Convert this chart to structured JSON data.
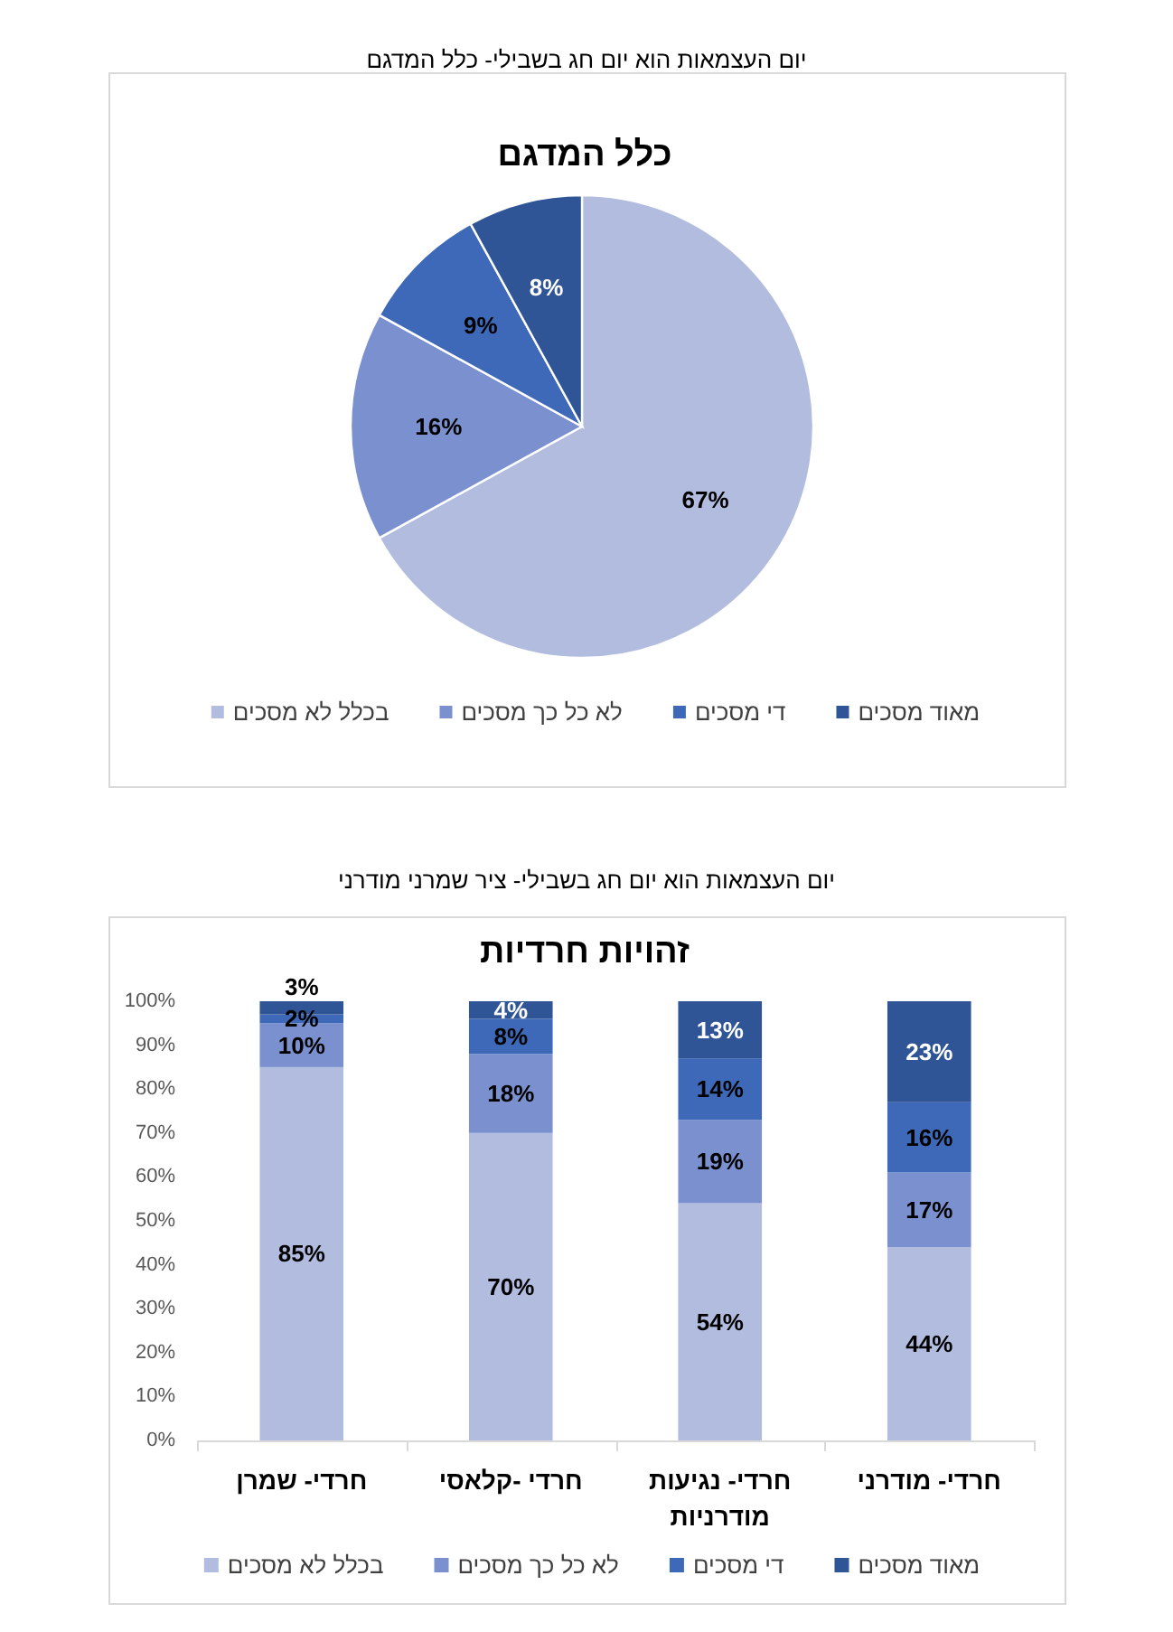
{
  "chart_data": [
    {
      "type": "pie",
      "title": "כלל המדגם",
      "annotations": [
        "יום העצמאות הוא יום חג בשבילי- כלל המדגם"
      ],
      "categories": [
        "בכלל לא מסכים",
        "לא כל כך מסכים",
        "די מסכים",
        "מאוד מסכים"
      ],
      "values": [
        67,
        16,
        9,
        8
      ],
      "colors": [
        "#b1bcdf",
        "#7b91cf",
        "#3e69b8",
        "#2f5597"
      ],
      "value_labels": [
        "67%",
        "16%",
        "9%",
        "8%"
      ],
      "legend": "bottom"
    },
    {
      "type": "bar",
      "stacked": true,
      "title": "זהויות חרדיות",
      "annotations": [
        "יום העצמאות הוא יום חג בשבילי- ציר שמרני מודרני"
      ],
      "categories": [
        "חרדי- שמרן",
        "חרדי -קלאסי",
        "חרדי- נגיעות מודרניות",
        "חרדי- מודרני"
      ],
      "series": [
        {
          "name": "בכלל לא מסכים",
          "color": "#b1bcdf",
          "values": [
            85,
            70,
            54,
            44
          ],
          "value_labels": [
            "85%",
            "70%",
            "54%",
            "44%"
          ]
        },
        {
          "name": "לא כל כך מסכים",
          "color": "#7b91cf",
          "values": [
            10,
            18,
            19,
            17
          ],
          "value_labels": [
            "10%",
            "18%",
            "19%",
            "17%"
          ]
        },
        {
          "name": "די מסכים",
          "color": "#3e69b8",
          "values": [
            2,
            8,
            14,
            16
          ],
          "value_labels": [
            "2%",
            "8%",
            "14%",
            "16%"
          ]
        },
        {
          "name": "מאוד מסכים",
          "color": "#2f5597",
          "values": [
            3,
            4,
            13,
            23
          ],
          "value_labels": [
            "3%",
            "4%",
            "13%",
            "23%"
          ]
        }
      ],
      "ylim": [
        0,
        100
      ],
      "yticks": [
        {
          "value": 0,
          "label": "0%"
        },
        {
          "value": 10,
          "label": "10%"
        },
        {
          "value": 20,
          "label": "20%"
        },
        {
          "value": 30,
          "label": "30%"
        },
        {
          "value": 40,
          "label": "40%"
        },
        {
          "value": 50,
          "label": "50%"
        },
        {
          "value": 60,
          "label": "60%"
        },
        {
          "value": 70,
          "label": "70%"
        },
        {
          "value": 80,
          "label": "80%"
        },
        {
          "value": 90,
          "label": "90%"
        },
        {
          "value": 100,
          "label": "100%"
        }
      ],
      "legend": "bottom"
    }
  ]
}
